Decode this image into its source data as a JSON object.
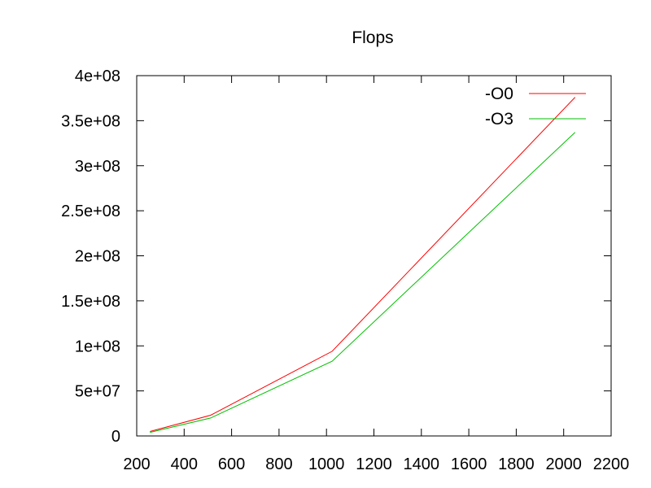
{
  "chart_data": {
    "type": "line",
    "title": "Flops",
    "xlabel": "",
    "ylabel": "",
    "xlim": [
      200,
      2200
    ],
    "ylim": [
      0,
      400000000
    ],
    "grid": false,
    "legend_position": "top-right",
    "x_ticks": [
      {
        "value": 200,
        "label": "200"
      },
      {
        "value": 400,
        "label": "400"
      },
      {
        "value": 600,
        "label": "600"
      },
      {
        "value": 800,
        "label": "800"
      },
      {
        "value": 1000,
        "label": "1000"
      },
      {
        "value": 1200,
        "label": "1200"
      },
      {
        "value": 1400,
        "label": "1400"
      },
      {
        "value": 1600,
        "label": "1600"
      },
      {
        "value": 1800,
        "label": "1800"
      },
      {
        "value": 2000,
        "label": "2000"
      },
      {
        "value": 2200,
        "label": "2200"
      }
    ],
    "y_ticks": [
      {
        "value": 0,
        "label": "0"
      },
      {
        "value": 50000000,
        "label": "5e+07"
      },
      {
        "value": 100000000,
        "label": "1e+08"
      },
      {
        "value": 150000000,
        "label": "1.5e+08"
      },
      {
        "value": 200000000,
        "label": "2e+08"
      },
      {
        "value": 250000000,
        "label": "2.5e+08"
      },
      {
        "value": 300000000,
        "label": "3e+08"
      },
      {
        "value": 350000000,
        "label": "3.5e+08"
      },
      {
        "value": 400000000,
        "label": "4e+08"
      }
    ],
    "series": [
      {
        "name": "-O0",
        "color": "#ff0000",
        "x": [
          256,
          512,
          1024,
          2048
        ],
        "y": [
          5000000,
          23000000,
          94000000,
          376000000
        ]
      },
      {
        "name": "-O3",
        "color": "#00c000",
        "x": [
          256,
          512,
          1024,
          2048
        ],
        "y": [
          4000000,
          20000000,
          83000000,
          337000000
        ]
      }
    ]
  }
}
